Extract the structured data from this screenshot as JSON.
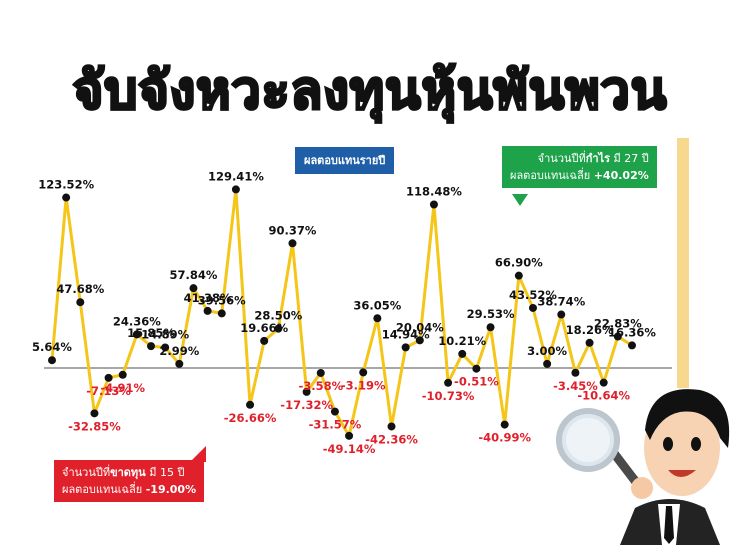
{
  "title": "จับจังหวะลงทุนหุ้นพันพวน",
  "series_label": "ผลตอบแทนรายปี",
  "profit_box": {
    "line1_prefix": "จำนวนปีที่",
    "line1_bold": "กำไร",
    "line1_suffix": " มี 27 ปี",
    "line2_prefix": "ผลตอบแทนเฉลี่ย ",
    "line2_bold": "+40.02%"
  },
  "loss_box": {
    "line1_prefix": "จำนวนปีที่",
    "line1_bold": "ขาดทุน",
    "line1_suffix": " มี 15 ปี",
    "line2_prefix": "ผลตอบแทนเฉลี่ย ",
    "line2_bold": "-19.00%"
  },
  "colors": {
    "line": "#f5c518",
    "point": "#111111",
    "positive_label": "#111111",
    "negative_label": "#e0202a",
    "profit_box": "#1fa34a",
    "loss_box": "#e0202a",
    "series_box": "#1f5fa8"
  },
  "chart_data": {
    "type": "line",
    "series": [
      {
        "name": "ผลตอบแทนรายปี",
        "values": [
          5.64,
          123.52,
          47.68,
          -32.85,
          -7.13,
          -4.91,
          24.36,
          15.85,
          14.89,
          2.99,
          57.84,
          41.38,
          39.56,
          129.41,
          -26.66,
          19.66,
          28.5,
          90.37,
          -17.32,
          -3.58,
          -31.57,
          -49.14,
          -3.19,
          36.05,
          -42.36,
          14.94,
          20.04,
          118.48,
          -10.73,
          10.21,
          -0.51,
          29.53,
          -40.99,
          66.9,
          43.52,
          3.0,
          38.74,
          -3.45,
          18.26,
          -10.64,
          22.83,
          16.36
        ]
      }
    ],
    "labels": [
      "5.64%",
      "123.52%",
      "47.68%",
      "-32.85%",
      "-7.13%",
      "-4.91%",
      "24.36%",
      "15.85%",
      "14.89%",
      "2.99%",
      "57.84%",
      "41.38%",
      "39.56%",
      "129.41%",
      "-26.66%",
      "19.66%",
      "28.50%",
      "90.37%",
      "-17.32%",
      "-3.58%",
      "-31.57%",
      "-49.14%",
      "-3.19%",
      "36.05%",
      "-42.36%",
      "14.94%",
      "20.04%",
      "118.48%",
      "-10.73%",
      "10.21%",
      "-0.51%",
      "29.53%",
      "-40.99%",
      "66.90%",
      "43.52%",
      "3.00%",
      "38.74%",
      "-3.45%",
      "18.26%",
      "-10.64%",
      "22.83%",
      "16.36%"
    ],
    "ylim": [
      -55,
      135
    ],
    "grid": false,
    "baseline": 0
  }
}
